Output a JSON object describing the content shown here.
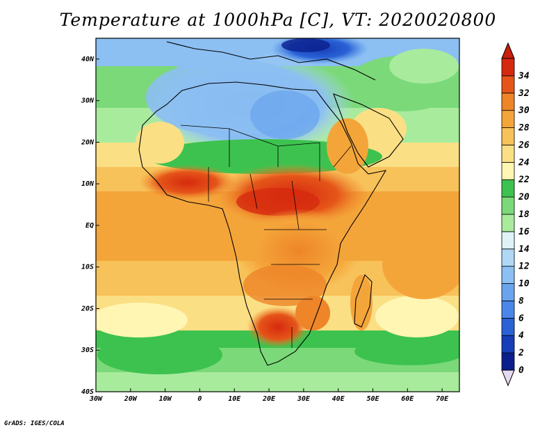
{
  "title": "Temperature at 1000hPa [C], VT: 2020020800",
  "credit": "GrADS: IGES/COLA",
  "map": {
    "lon_range": [
      -30,
      75
    ],
    "lat_range": [
      -40,
      45
    ],
    "lon_ticks": [
      "30W",
      "20W",
      "10W",
      "0",
      "10E",
      "20E",
      "30E",
      "40E",
      "50E",
      "60E",
      "70E"
    ],
    "lat_ticks": [
      "40S",
      "30S",
      "20S",
      "10S",
      "EQ",
      "10N",
      "20N",
      "30N",
      "40N"
    ]
  },
  "colorbar": {
    "levels": [
      0,
      2,
      4,
      6,
      8,
      10,
      12,
      14,
      16,
      18,
      20,
      22,
      24,
      26,
      28,
      30,
      32,
      34
    ],
    "labels": [
      "0",
      "2",
      "4",
      "6",
      "8",
      "10",
      "12",
      "14",
      "16",
      "18",
      "20",
      "22",
      "24",
      "26",
      "28",
      "30",
      "32",
      "34"
    ],
    "colors": [
      "#0b1f8c",
      "#173eb8",
      "#2a62d6",
      "#4a87e8",
      "#6aa4ee",
      "#8cbff2",
      "#b0d8f5",
      "#dff3f5",
      "#a9eb9d",
      "#7bd97a",
      "#3dc24f",
      "#fff6b4",
      "#fbdf85",
      "#f8c25a",
      "#f4a53a",
      "#ee8528",
      "#e55519",
      "#d62a0f"
    ],
    "under_color": "#e6d9f2",
    "over_color": "#c81e0c"
  }
}
